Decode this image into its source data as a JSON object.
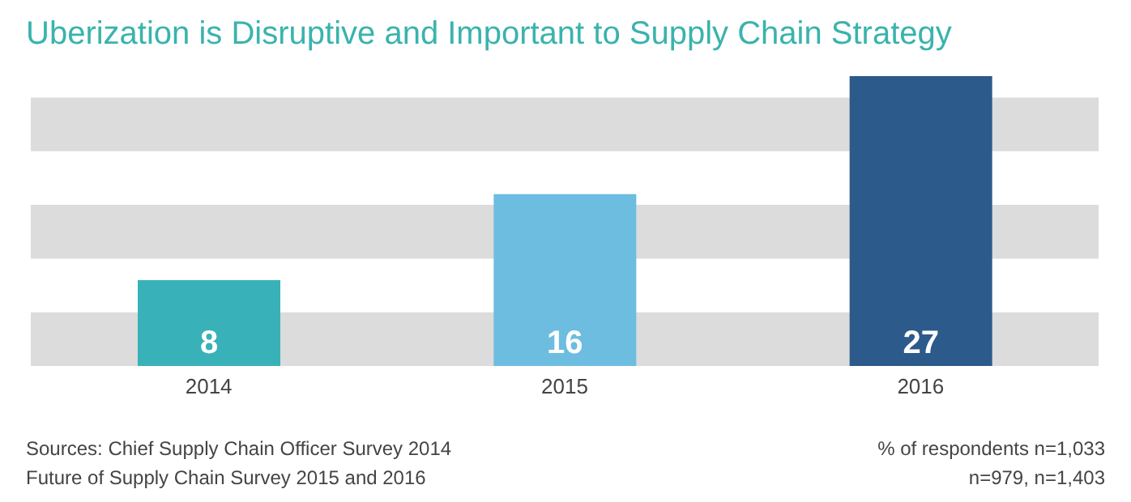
{
  "chart_data": {
    "type": "bar",
    "title": "Uberization is Disruptive and Important to Supply Chain Strategy",
    "categories": [
      "2014",
      "2015",
      "2016"
    ],
    "values": [
      8,
      16,
      27
    ],
    "colors": [
      "#38b2b8",
      "#6dbde0",
      "#2c5a8a"
    ],
    "data_labels": true,
    "bands": [
      {
        "axis": "y",
        "from": 0,
        "to": 5,
        "color": "#dcdcdc"
      },
      {
        "axis": "y",
        "from": 10,
        "to": 15,
        "color": "#dcdcdc"
      },
      {
        "axis": "y",
        "from": 20,
        "to": 25,
        "color": "#dcdcdc"
      }
    ],
    "annotations": [
      "Sources: Chief Supply Chain Officer Survey 2014",
      "Future of Supply Chain Survey 2015 and 2016",
      "% of respondents n=1,033",
      "n=979, n=1,403"
    ]
  }
}
